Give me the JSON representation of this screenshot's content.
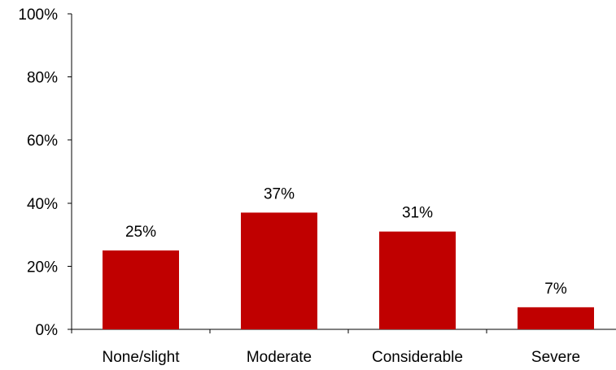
{
  "chart_data": {
    "type": "bar",
    "categories": [
      "None/slight",
      "Moderate",
      "Considerable",
      "Severe"
    ],
    "values": [
      25,
      37,
      31,
      7
    ],
    "data_labels": [
      "25%",
      "37%",
      "31%",
      "7%"
    ],
    "title": "",
    "xlabel": "",
    "ylabel": "",
    "ylim": [
      0,
      100
    ],
    "yticks": [
      0,
      20,
      40,
      60,
      80,
      100
    ],
    "ytick_labels": [
      "0%",
      "20%",
      "40%",
      "60%",
      "80%",
      "100%"
    ],
    "grid": false,
    "legend": "none",
    "colors": {
      "bar": "#c00000",
      "axis": "#000000",
      "text": "#000000"
    }
  }
}
